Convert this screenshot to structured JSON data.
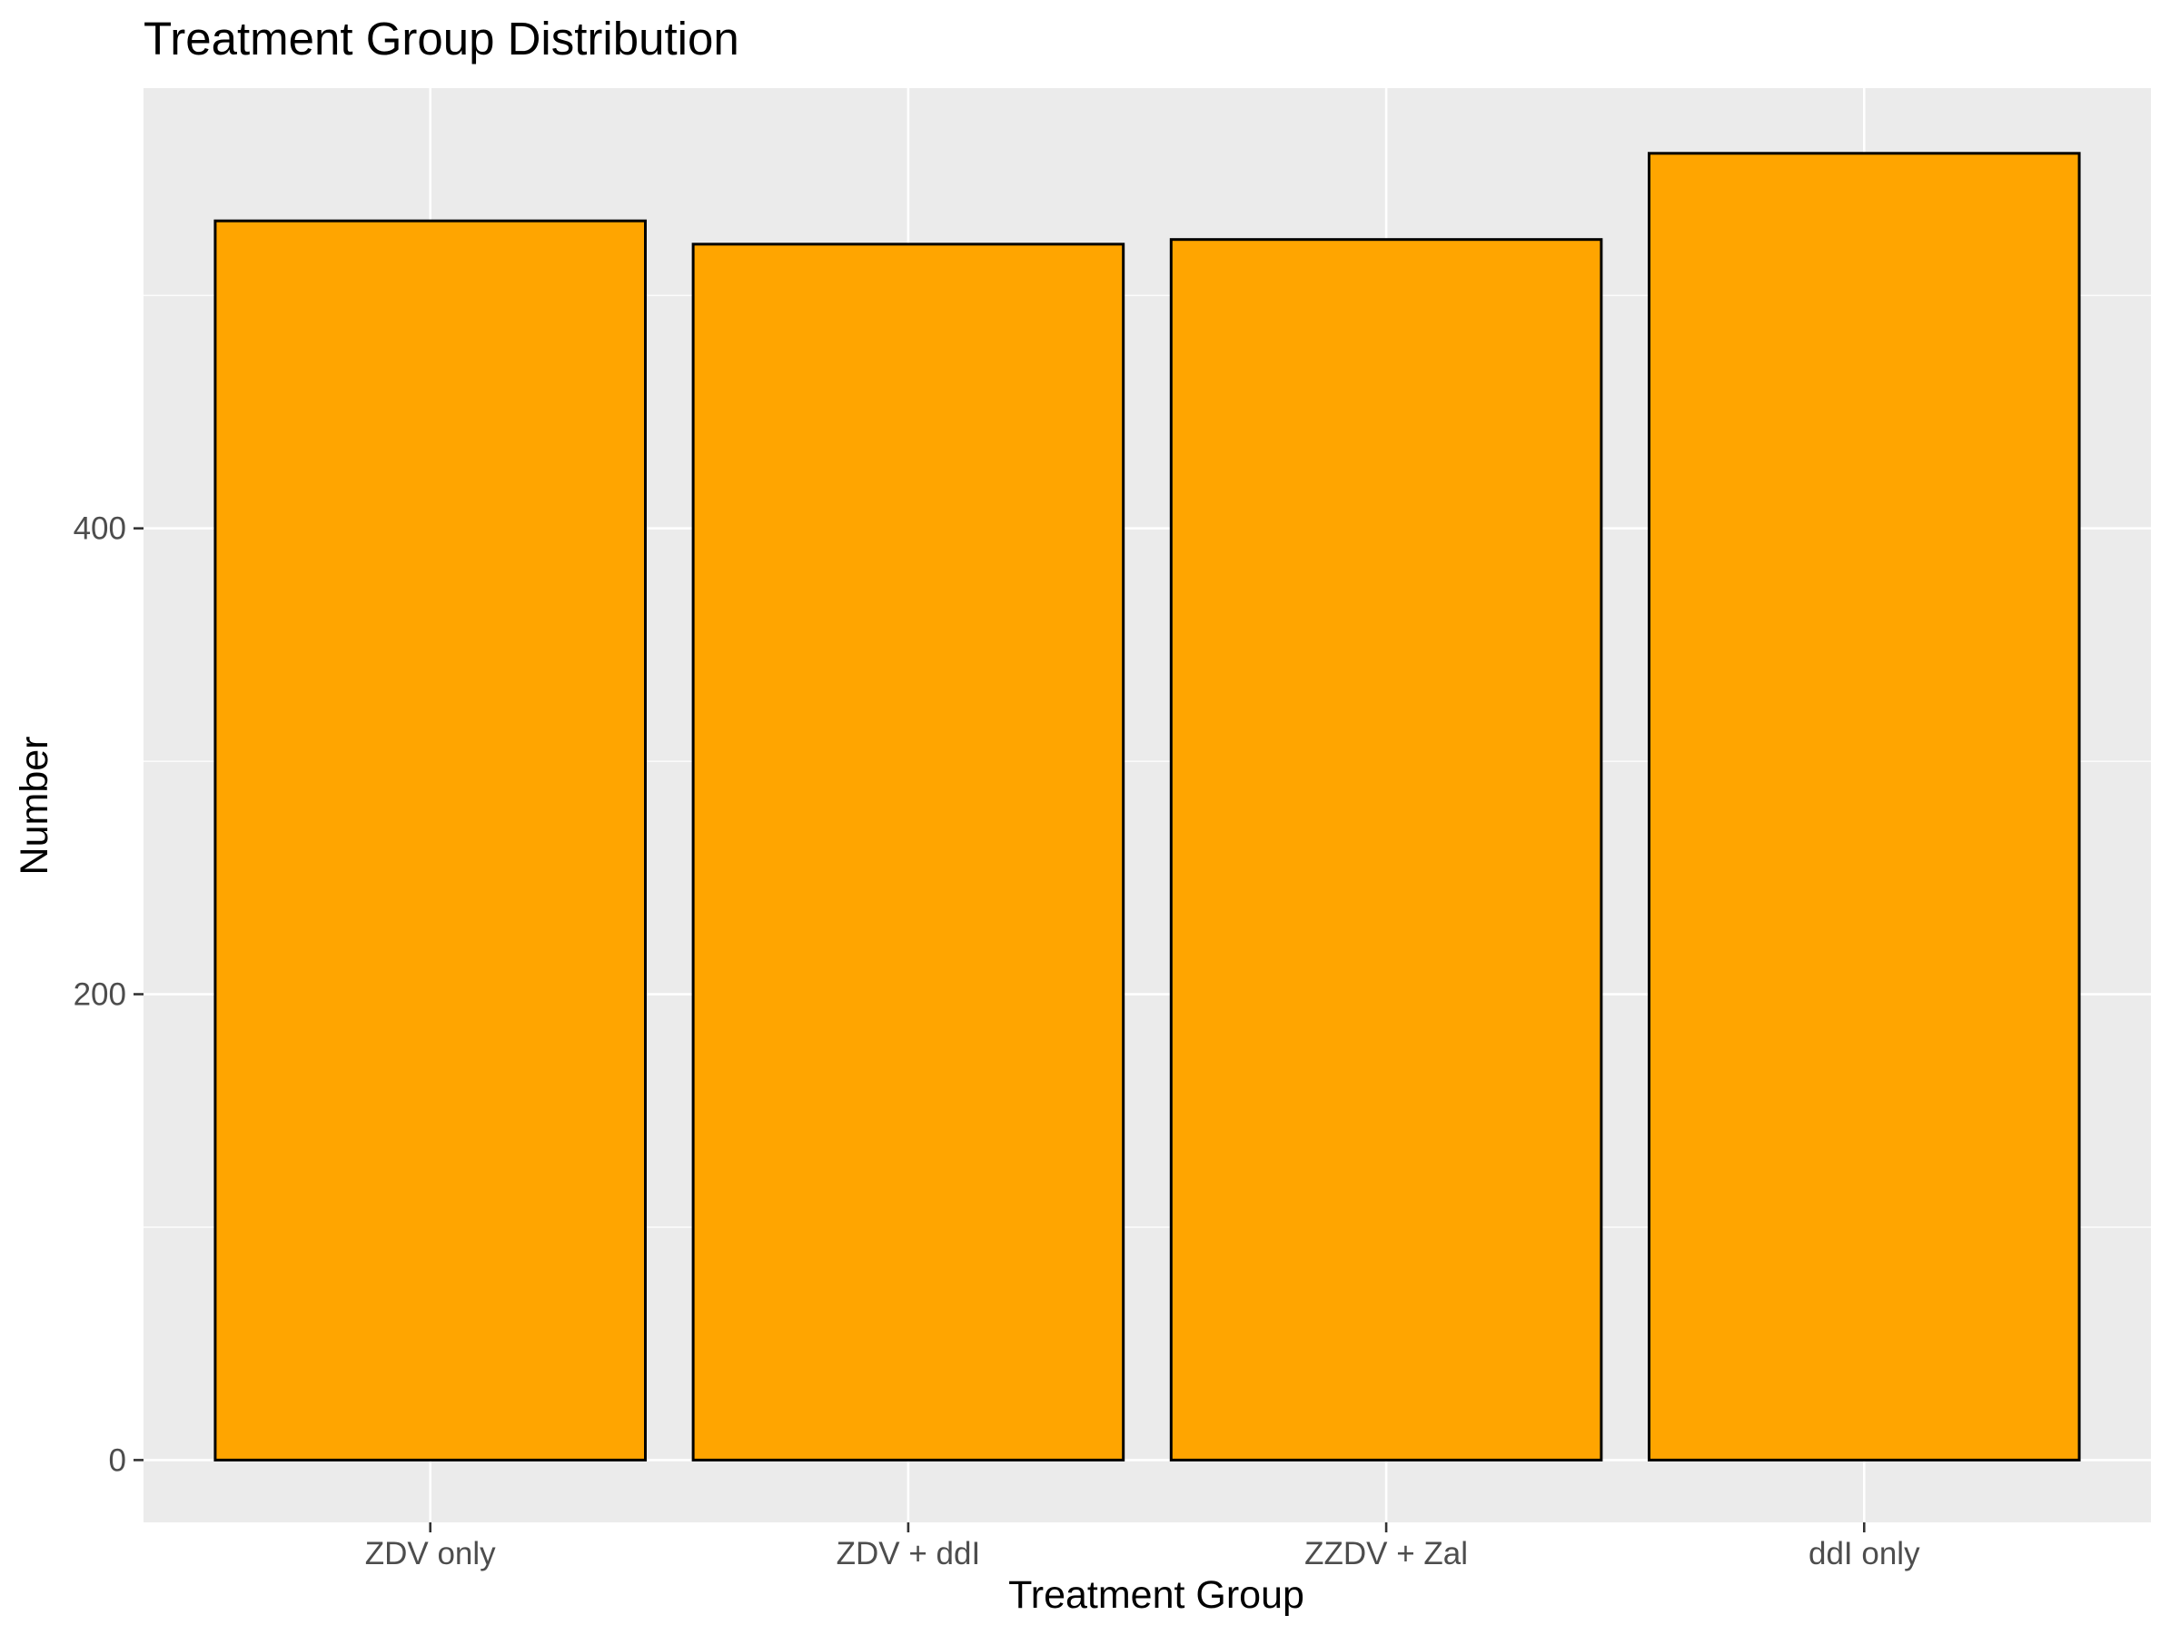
{
  "chart_data": {
    "type": "bar",
    "title": "Treatment Group Distribution",
    "xlabel": "Treatment Group",
    "ylabel": "Number",
    "categories": [
      "ZDV only",
      "ZDV + ddI",
      "ZZDV + Zal",
      "ddI only"
    ],
    "values": [
      532,
      522,
      524,
      561
    ],
    "ylim": [
      -26.75,
      589
    ],
    "yticks": [
      0,
      200,
      400
    ],
    "grid": true,
    "legend": "none",
    "colors": {
      "bar_fill": "#FFA500",
      "bar_stroke": "#000000",
      "panel_background": "#EBEBEB",
      "gridline": "#FFFFFF"
    }
  }
}
